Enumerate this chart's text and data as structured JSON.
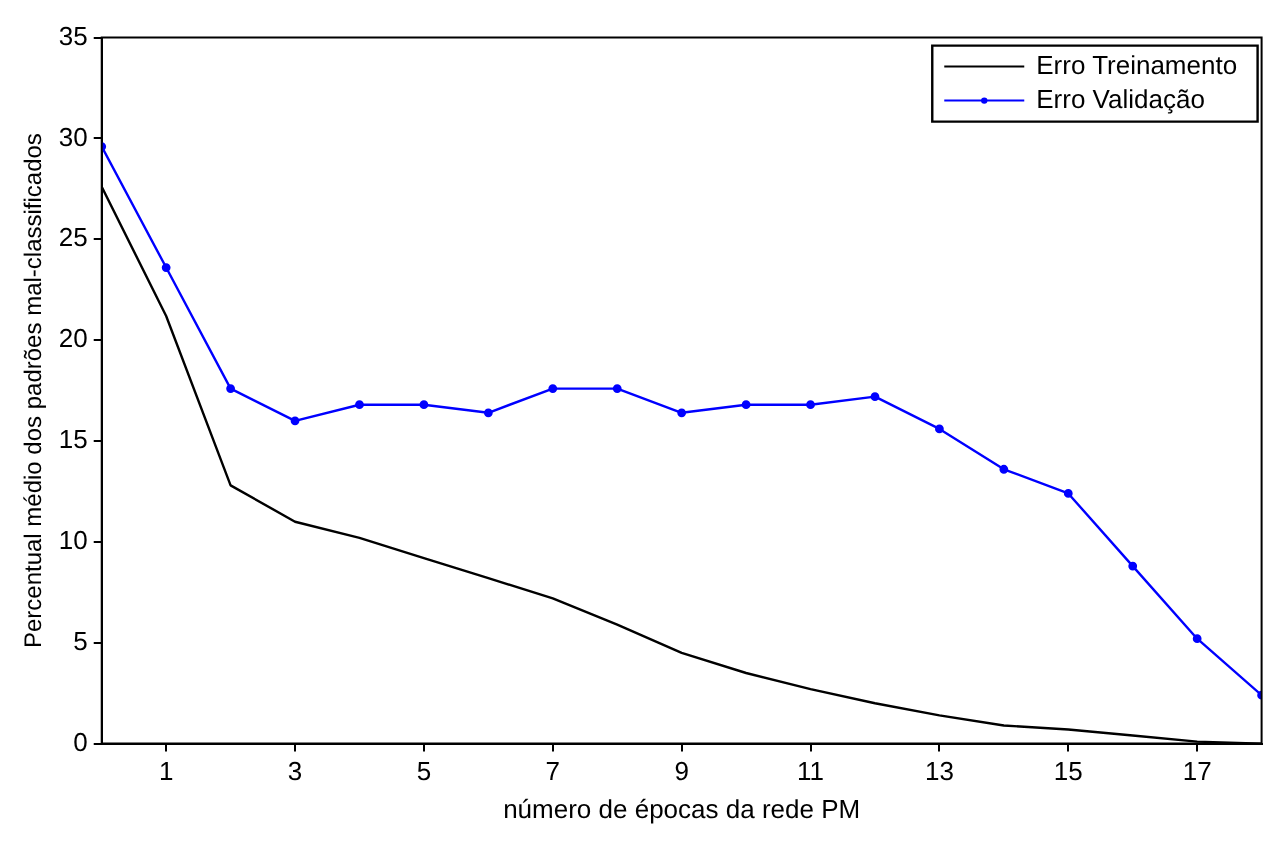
{
  "chart_data": {
    "type": "line",
    "xlabel": "número de épocas da rede PM",
    "ylabel": "Percentual médio dos padrões mal-classificados",
    "x": [
      0,
      1,
      2,
      3,
      4,
      5,
      6,
      7,
      8,
      9,
      10,
      11,
      12,
      13,
      14,
      15,
      16,
      17,
      18
    ],
    "xlim": [
      0,
      18
    ],
    "xticks": [
      1,
      3,
      5,
      7,
      9,
      11,
      13,
      15,
      17
    ],
    "ylim": [
      0,
      35
    ],
    "yticks": [
      0,
      5,
      10,
      15,
      20,
      25,
      30,
      35
    ],
    "grid": false,
    "legend": "top right",
    "series": [
      {
        "name": "Erro Treinamento",
        "color": "#000000",
        "marker": "none",
        "values": [
          27.6,
          21.2,
          12.8,
          11.0,
          10.2,
          9.2,
          8.2,
          7.2,
          5.9,
          4.5,
          3.5,
          2.7,
          2.0,
          1.4,
          0.9,
          0.7,
          0.4,
          0.1,
          0.0
        ]
      },
      {
        "name": "Erro Validação",
        "color": "#0000ff",
        "marker": "circle",
        "values": [
          29.6,
          23.6,
          17.6,
          16.0,
          16.8,
          16.8,
          16.4,
          17.6,
          17.6,
          16.4,
          16.8,
          16.8,
          17.2,
          15.6,
          13.6,
          12.4,
          8.8,
          5.2,
          2.4
        ]
      }
    ]
  }
}
